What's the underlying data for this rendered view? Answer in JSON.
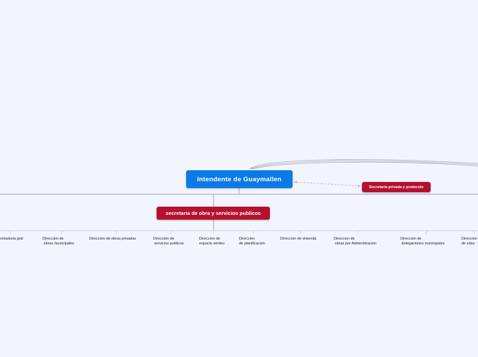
{
  "mindmap": {
    "root": "Intendente de Guaymallen",
    "main_branch": "secretaria de obra y servicios publicos",
    "side_branch": "Secretaria privada y protocolo",
    "leaves": [
      "ontaduria gral",
      "Direccion de\n obras municipales",
      "Direccion de obras privadas",
      "Dirección de\n servicios publicos",
      "Direccion de\nespacio verdes",
      "Direccion\nde planificacion",
      "DIreccion de vivienda",
      "Direccion de\n obras por Administracion",
      "Direccion de\n delegaciones municipales",
      "Direccion\nde educ"
    ]
  },
  "colors": {
    "background": "#f2f5fd",
    "root_fill": "#0a7ae6",
    "branch_fill": "#b5112f",
    "connector": "#9ea3ab"
  }
}
